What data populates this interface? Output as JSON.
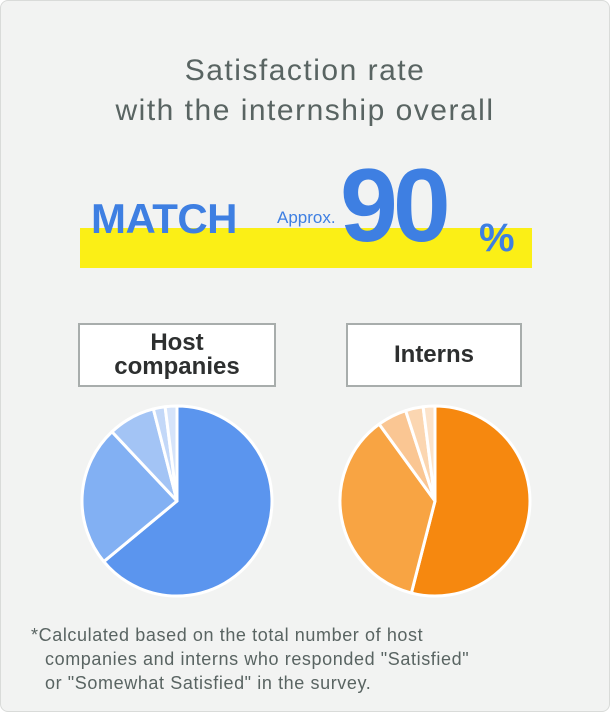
{
  "title": {
    "line1": "Satisfaction rate",
    "line2": "with the internship overall"
  },
  "headline": {
    "match": "MATCH",
    "approx": "Approx.",
    "value": "90",
    "unit": "%"
  },
  "labels": {
    "host_line1": "Host",
    "host_line2": "companies",
    "interns": "Interns"
  },
  "footnote": {
    "line1": "*Calculated based on the total number of host",
    "line2": "companies and interns who responded \"Satisfied\"",
    "line3": "or \"Somewhat Satisfied\" in the survey."
  },
  "colors": {
    "accent": "#3e7fe2",
    "highlight": "#fbef16",
    "host_palette": [
      "#5b95ee",
      "#82b0f3",
      "#a3c4f5",
      "#c3d8f8",
      "#d6e4fa"
    ],
    "interns_palette": [
      "#f6880f",
      "#f8a443",
      "#fac693",
      "#fbd6b1",
      "#fce3ca"
    ]
  },
  "chart_data": [
    {
      "type": "pie",
      "name": "Host companies",
      "values": [
        64,
        24,
        8,
        2,
        2
      ]
    },
    {
      "type": "pie",
      "name": "Interns",
      "values": [
        54,
        36,
        5,
        3,
        2
      ]
    }
  ]
}
